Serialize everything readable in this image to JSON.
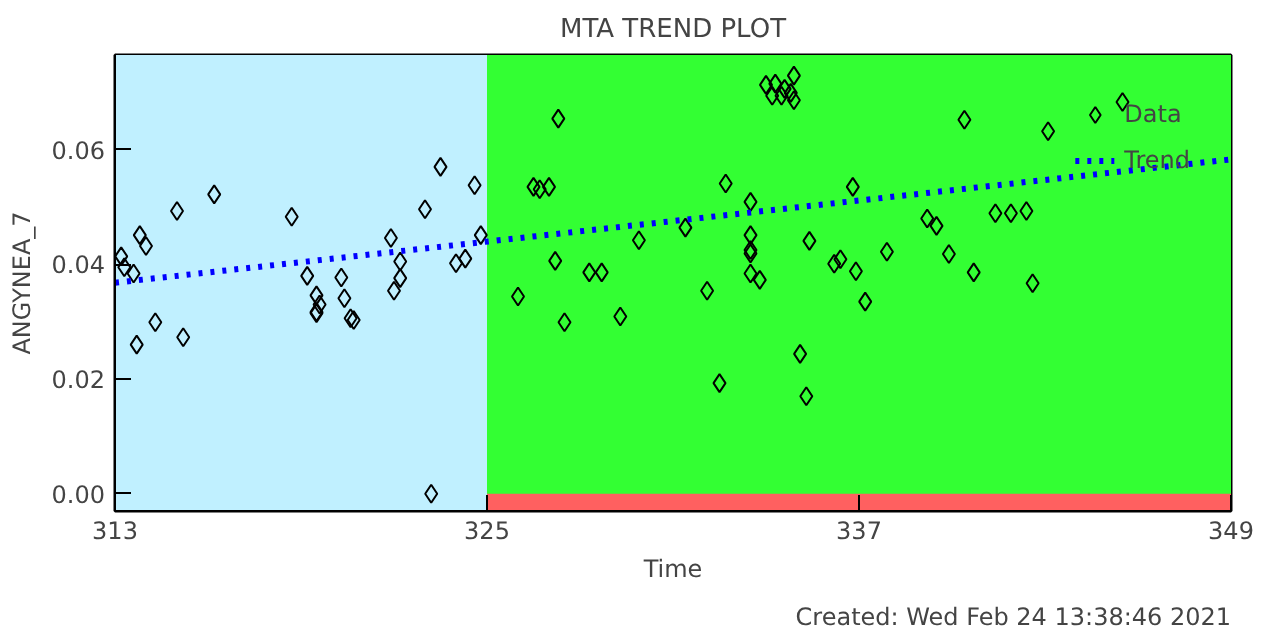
{
  "chart_data": {
    "type": "scatter",
    "title": "MTA TREND PLOT",
    "xlabel": "Time",
    "ylabel": "ANGYNEA_7",
    "annotations": [
      "Created: Wed Feb 24 13:38:46 2021"
    ],
    "xlim": [
      313,
      349
    ],
    "ylim": [
      -0.003,
      0.0765
    ],
    "xticks": [
      313,
      325,
      337,
      349
    ],
    "yticks": [
      {
        "value": 0,
        "label": "0.00"
      },
      {
        "value": 0.02,
        "label": "0.02"
      },
      {
        "value": 0.04,
        "label": "0.04"
      },
      {
        "value": 0.06,
        "label": "0.06"
      }
    ],
    "legend": "top right",
    "bands": [
      {
        "axis": "x",
        "from": 325,
        "to": 349,
        "color": "#33ff33"
      },
      {
        "axis": "y",
        "from": -0.003,
        "to": 0,
        "color": "#ff6060"
      },
      {
        "axis": "x",
        "from": 313,
        "to": 325,
        "color": "#c0f0ff"
      }
    ],
    "series": [
      {
        "name": "Data",
        "marker": "diamond",
        "color": "#000000",
        "x": [
          313.2,
          313.3,
          313.6,
          313.8,
          314.0,
          313.7,
          314.3,
          315.0,
          315.2,
          316.2,
          318.7,
          319.2,
          319.5,
          319.6,
          319.5,
          319.5,
          320.3,
          320.4,
          320.6,
          320.7,
          321.9,
          322.0,
          322.2,
          322.2,
          323.0,
          323.2,
          323.5,
          324.0,
          324.3,
          324.6,
          324.8,
          327.3,
          326.5,
          326.7,
          327.0,
          326.0,
          327.2,
          327.5,
          328.3,
          328.7,
          329.3,
          329.9,
          331.4,
          332.1,
          332.5,
          332.7,
          333.5,
          333.5,
          333.5,
          333.5,
          333.5,
          333.8,
          335.1,
          335.3,
          335.4,
          336.2,
          336.4,
          336.9,
          337.2,
          336.8,
          337.9,
          334.0,
          334.3,
          334.9,
          334.2,
          334.5,
          334.8,
          334.9,
          334.6,
          339.2,
          339.5,
          339.9,
          340.7,
          340.4,
          341.4,
          341.9,
          342.4,
          342.6,
          345.5,
          343.1
        ],
        "values": [
          0.0414,
          0.0395,
          0.0384,
          0.0451,
          0.0432,
          0.026,
          0.0299,
          0.0493,
          0.0273,
          0.0522,
          0.0483,
          0.038,
          0.0346,
          0.033,
          0.0317,
          0.0315,
          0.0377,
          0.0341,
          0.0306,
          0.0303,
          0.0446,
          0.0354,
          0.0376,
          0.0405,
          0.0496,
          0.0,
          0.057,
          0.0402,
          0.041,
          0.0538,
          0.0451,
          0.0654,
          0.0535,
          0.0531,
          0.0535,
          0.0344,
          0.0406,
          0.0299,
          0.0386,
          0.0386,
          0.0309,
          0.0442,
          0.0464,
          0.0354,
          0.0193,
          0.0541,
          0.0451,
          0.0509,
          0.0425,
          0.0419,
          0.0384,
          0.0373,
          0.0244,
          0.017,
          0.0441,
          0.0401,
          0.0409,
          0.0388,
          0.0335,
          0.0535,
          0.0422,
          0.0713,
          0.0715,
          0.0729,
          0.0694,
          0.0694,
          0.0699,
          0.0686,
          0.0706,
          0.048,
          0.0467,
          0.0418,
          0.0386,
          0.0652,
          0.0489,
          0.0489,
          0.0493,
          0.0367,
          0.0683,
          0.0632
        ]
      },
      {
        "name": "Trend",
        "type": "line",
        "line_style": "dotted",
        "color": "#0000ff",
        "x": [
          313,
          349
        ],
        "values": [
          0.0368,
          0.0583
        ]
      }
    ]
  }
}
